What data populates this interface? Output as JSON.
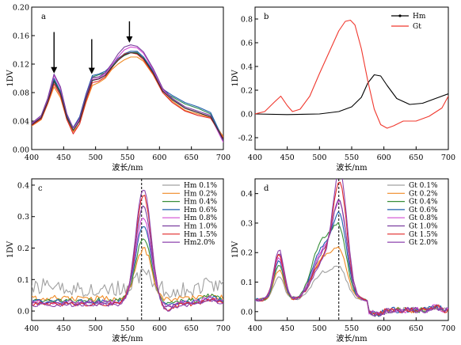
{
  "chart_data": [
    {
      "panel": "a",
      "type": "line",
      "xlabel": "波长/nm",
      "ylabel": "1DV",
      "xlim": [
        400,
        700
      ],
      "ylim": [
        0,
        0.2
      ],
      "xticks": [
        400,
        450,
        500,
        550,
        600,
        650,
        700
      ],
      "yticks": [
        "0.00",
        "0.04",
        "0.08",
        "0.12",
        "0.16",
        "0.20"
      ],
      "annotations": [
        {
          "type": "arrow",
          "x": 435,
          "y_top": 0.165,
          "y_tip": 0.107
        },
        {
          "type": "arrow",
          "x": 494,
          "y_top": 0.155,
          "y_tip": 0.106
        },
        {
          "type": "arrow",
          "x": 553,
          "y_top": 0.18,
          "y_tip": 0.15
        }
      ],
      "series": [
        {
          "color": "#a0a0a0",
          "x": [
            400,
            415,
            425,
            435,
            445,
            455,
            465,
            475,
            485,
            495,
            505,
            515,
            525,
            535,
            545,
            555,
            565,
            575,
            590,
            605,
            620,
            640,
            660,
            680,
            700
          ],
          "y": [
            0.035,
            0.045,
            0.068,
            0.094,
            0.078,
            0.044,
            0.026,
            0.04,
            0.072,
            0.1,
            0.102,
            0.106,
            0.117,
            0.126,
            0.135,
            0.138,
            0.137,
            0.13,
            0.111,
            0.084,
            0.072,
            0.058,
            0.052,
            0.046,
            0.015
          ]
        },
        {
          "color": "#f08a24",
          "x": [
            400,
            415,
            425,
            435,
            445,
            455,
            465,
            475,
            485,
            495,
            505,
            515,
            525,
            535,
            545,
            555,
            565,
            575,
            590,
            605,
            620,
            640,
            660,
            680,
            700
          ],
          "y": [
            0.033,
            0.042,
            0.064,
            0.088,
            0.073,
            0.042,
            0.025,
            0.036,
            0.066,
            0.09,
            0.094,
            0.1,
            0.112,
            0.12,
            0.126,
            0.13,
            0.13,
            0.124,
            0.105,
            0.08,
            0.068,
            0.055,
            0.05,
            0.045,
            0.018
          ]
        },
        {
          "color": "#2e8b57",
          "x": [
            400,
            415,
            425,
            435,
            445,
            455,
            465,
            475,
            485,
            495,
            505,
            515,
            525,
            535,
            545,
            555,
            565,
            575,
            590,
            605,
            620,
            640,
            660,
            680,
            700
          ],
          "y": [
            0.034,
            0.044,
            0.066,
            0.098,
            0.08,
            0.046,
            0.03,
            0.044,
            0.076,
            0.102,
            0.105,
            0.108,
            0.116,
            0.126,
            0.132,
            0.136,
            0.136,
            0.128,
            0.108,
            0.082,
            0.074,
            0.064,
            0.058,
            0.05,
            0.012
          ]
        },
        {
          "color": "#1f5fae",
          "x": [
            400,
            415,
            425,
            435,
            445,
            455,
            465,
            475,
            485,
            495,
            505,
            515,
            525,
            535,
            545,
            555,
            565,
            575,
            590,
            605,
            620,
            640,
            660,
            680,
            700
          ],
          "y": [
            0.036,
            0.046,
            0.069,
            0.1,
            0.082,
            0.048,
            0.031,
            0.046,
            0.078,
            0.104,
            0.106,
            0.11,
            0.118,
            0.128,
            0.134,
            0.138,
            0.138,
            0.13,
            0.11,
            0.085,
            0.076,
            0.066,
            0.06,
            0.052,
            0.014
          ]
        },
        {
          "color": "#d24bd2",
          "x": [
            400,
            415,
            425,
            435,
            445,
            455,
            465,
            475,
            485,
            495,
            505,
            515,
            525,
            535,
            545,
            555,
            565,
            575,
            590,
            605,
            620,
            640,
            660,
            680,
            700
          ],
          "y": [
            0.036,
            0.046,
            0.07,
            0.104,
            0.086,
            0.05,
            0.03,
            0.042,
            0.074,
            0.098,
            0.1,
            0.106,
            0.118,
            0.13,
            0.14,
            0.144,
            0.143,
            0.135,
            0.112,
            0.084,
            0.07,
            0.058,
            0.052,
            0.046,
            0.01
          ]
        },
        {
          "color": "#7b3fa0",
          "x": [
            400,
            415,
            425,
            435,
            445,
            455,
            465,
            475,
            485,
            495,
            505,
            515,
            525,
            535,
            545,
            555,
            565,
            575,
            590,
            605,
            620,
            640,
            660,
            680,
            700
          ],
          "y": [
            0.037,
            0.048,
            0.072,
            0.106,
            0.088,
            0.05,
            0.03,
            0.044,
            0.076,
            0.101,
            0.102,
            0.108,
            0.12,
            0.134,
            0.144,
            0.147,
            0.145,
            0.137,
            0.114,
            0.086,
            0.072,
            0.06,
            0.054,
            0.048,
            0.012
          ]
        },
        {
          "color": "#e02828",
          "x": [
            400,
            415,
            425,
            435,
            445,
            455,
            465,
            475,
            485,
            495,
            505,
            515,
            525,
            535,
            545,
            555,
            565,
            575,
            590,
            605,
            620,
            640,
            660,
            680,
            700
          ],
          "y": [
            0.034,
            0.043,
            0.065,
            0.092,
            0.076,
            0.042,
            0.022,
            0.036,
            0.068,
            0.094,
            0.096,
            0.102,
            0.114,
            0.126,
            0.134,
            0.136,
            0.134,
            0.126,
            0.106,
            0.08,
            0.066,
            0.054,
            0.048,
            0.044,
            0.016
          ]
        },
        {
          "color": "#333333",
          "x": [
            400,
            415,
            425,
            435,
            445,
            455,
            465,
            475,
            485,
            495,
            505,
            515,
            525,
            535,
            545,
            555,
            565,
            575,
            590,
            605,
            620,
            640,
            660,
            680,
            700
          ],
          "y": [
            0.035,
            0.045,
            0.067,
            0.096,
            0.079,
            0.045,
            0.027,
            0.04,
            0.072,
            0.097,
            0.099,
            0.104,
            0.115,
            0.125,
            0.133,
            0.136,
            0.135,
            0.128,
            0.108,
            0.082,
            0.07,
            0.058,
            0.052,
            0.046,
            0.014
          ]
        }
      ]
    },
    {
      "panel": "b",
      "type": "line",
      "xlabel": "波长/nm",
      "ylabel": "1DV",
      "xlim": [
        400,
        700
      ],
      "ylim": [
        -0.3,
        0.9
      ],
      "xticks": [
        400,
        450,
        500,
        550,
        600,
        650,
        700
      ],
      "yticks": [
        "-0.2",
        "0.0",
        "0.2",
        "0.4",
        "0.6",
        "0.8"
      ],
      "legend": {
        "position": "top-right"
      },
      "series": [
        {
          "name": "Hm",
          "color": "#000000",
          "marker": "dot",
          "x": [
            400,
            450,
            500,
            530,
            550,
            565,
            575,
            585,
            595,
            605,
            620,
            640,
            660,
            680,
            700
          ],
          "y": [
            0.0,
            -0.005,
            0.0,
            0.02,
            0.06,
            0.14,
            0.26,
            0.33,
            0.32,
            0.24,
            0.13,
            0.08,
            0.09,
            0.13,
            0.17
          ]
        },
        {
          "name": "Gt",
          "color": "#f0382e",
          "x": [
            400,
            415,
            430,
            440,
            450,
            458,
            470,
            485,
            500,
            515,
            530,
            540,
            548,
            555,
            565,
            575,
            585,
            595,
            605,
            615,
            630,
            650,
            670,
            690,
            700
          ],
          "y": [
            0.0,
            0.02,
            0.1,
            0.15,
            0.07,
            0.02,
            0.04,
            0.15,
            0.34,
            0.52,
            0.7,
            0.78,
            0.79,
            0.75,
            0.55,
            0.28,
            0.04,
            -0.09,
            -0.12,
            -0.1,
            -0.06,
            -0.06,
            -0.02,
            0.05,
            0.15
          ]
        }
      ]
    },
    {
      "panel": "c",
      "type": "line",
      "xlabel": "波长/nm",
      "ylabel": "1DV",
      "xlim": [
        400,
        700
      ],
      "ylim": [
        -0.03,
        0.42
      ],
      "xticks": [
        400,
        450,
        500,
        550,
        600,
        650,
        700
      ],
      "yticks": [
        "0.0",
        "0.1",
        "0.2",
        "0.3",
        "0.4"
      ],
      "vline": 572,
      "legend": {
        "position": "top-right"
      },
      "series": [
        {
          "name": "Hm 0.1%",
          "color": "#a0a0a0",
          "peak": 0.05,
          "base": 0.07,
          "noise": 0.025
        },
        {
          "name": "Hm 0.2%",
          "color": "#f08a24",
          "peak": 0.16,
          "base": 0.04,
          "noise": 0.01
        },
        {
          "name": "Hm 0.4%",
          "color": "#3a8f3a",
          "peak": 0.2,
          "base": 0.035,
          "noise": 0.008
        },
        {
          "name": "Hm 0.6%",
          "color": "#1f5fae",
          "peak": 0.24,
          "base": 0.03,
          "noise": 0.007
        },
        {
          "name": "Hm 0.8%",
          "color": "#d24bd2",
          "peak": 0.27,
          "base": 0.028,
          "noise": 0.007
        },
        {
          "name": "Hm 1.0%",
          "color": "#7b3fa0",
          "peak": 0.31,
          "base": 0.025,
          "noise": 0.006
        },
        {
          "name": "Hm 1.5%",
          "color": "#e02828",
          "peak": 0.35,
          "base": 0.022,
          "noise": 0.006
        },
        {
          "name": "Hm2.0%",
          "color": "#8e44ad",
          "peak": 0.37,
          "base": 0.02,
          "noise": 0.006
        }
      ]
    },
    {
      "panel": "d",
      "type": "line",
      "xlabel": "波长/nm",
      "ylabel": "1DV",
      "xlim": [
        400,
        700
      ],
      "ylim": [
        -0.03,
        0.45
      ],
      "xticks": [
        400,
        450,
        500,
        550,
        600,
        650,
        700
      ],
      "yticks": [
        "0.0",
        "0.1",
        "0.2",
        "0.3",
        "0.4"
      ],
      "vline": 530,
      "legend": {
        "position": "top-right"
      },
      "series": [
        {
          "name": "Gt 0.1%",
          "color": "#a0a0a0",
          "peak": 0.09,
          "p440": 0.08,
          "shoulder": 0.09
        },
        {
          "name": "Gt 0.2%",
          "color": "#f08a24",
          "peak": 0.14,
          "p440": 0.1,
          "shoulder": 0.14
        },
        {
          "name": "Gt 0.4%",
          "color": "#3a8f3a",
          "peak": 0.2,
          "p440": 0.12,
          "shoulder": 0.2
        },
        {
          "name": "Gt 0.6%",
          "color": "#1f5fae",
          "peak": 0.25,
          "p440": 0.13,
          "shoulder": 0.17
        },
        {
          "name": "Gt 0.8%",
          "color": "#d24bd2",
          "peak": 0.29,
          "p440": 0.14,
          "shoulder": 0.16
        },
        {
          "name": "Gt 1.0%",
          "color": "#7b3fa0",
          "peak": 0.3,
          "p440": 0.16,
          "shoulder": 0.15
        },
        {
          "name": "Gt 1.5%",
          "color": "#e02828",
          "peak": 0.37,
          "p440": 0.15,
          "shoulder": 0.13
        },
        {
          "name": "Gt 2.0%",
          "color": "#8e44ad",
          "peak": 0.41,
          "p440": 0.17,
          "shoulder": 0.12
        }
      ]
    }
  ]
}
